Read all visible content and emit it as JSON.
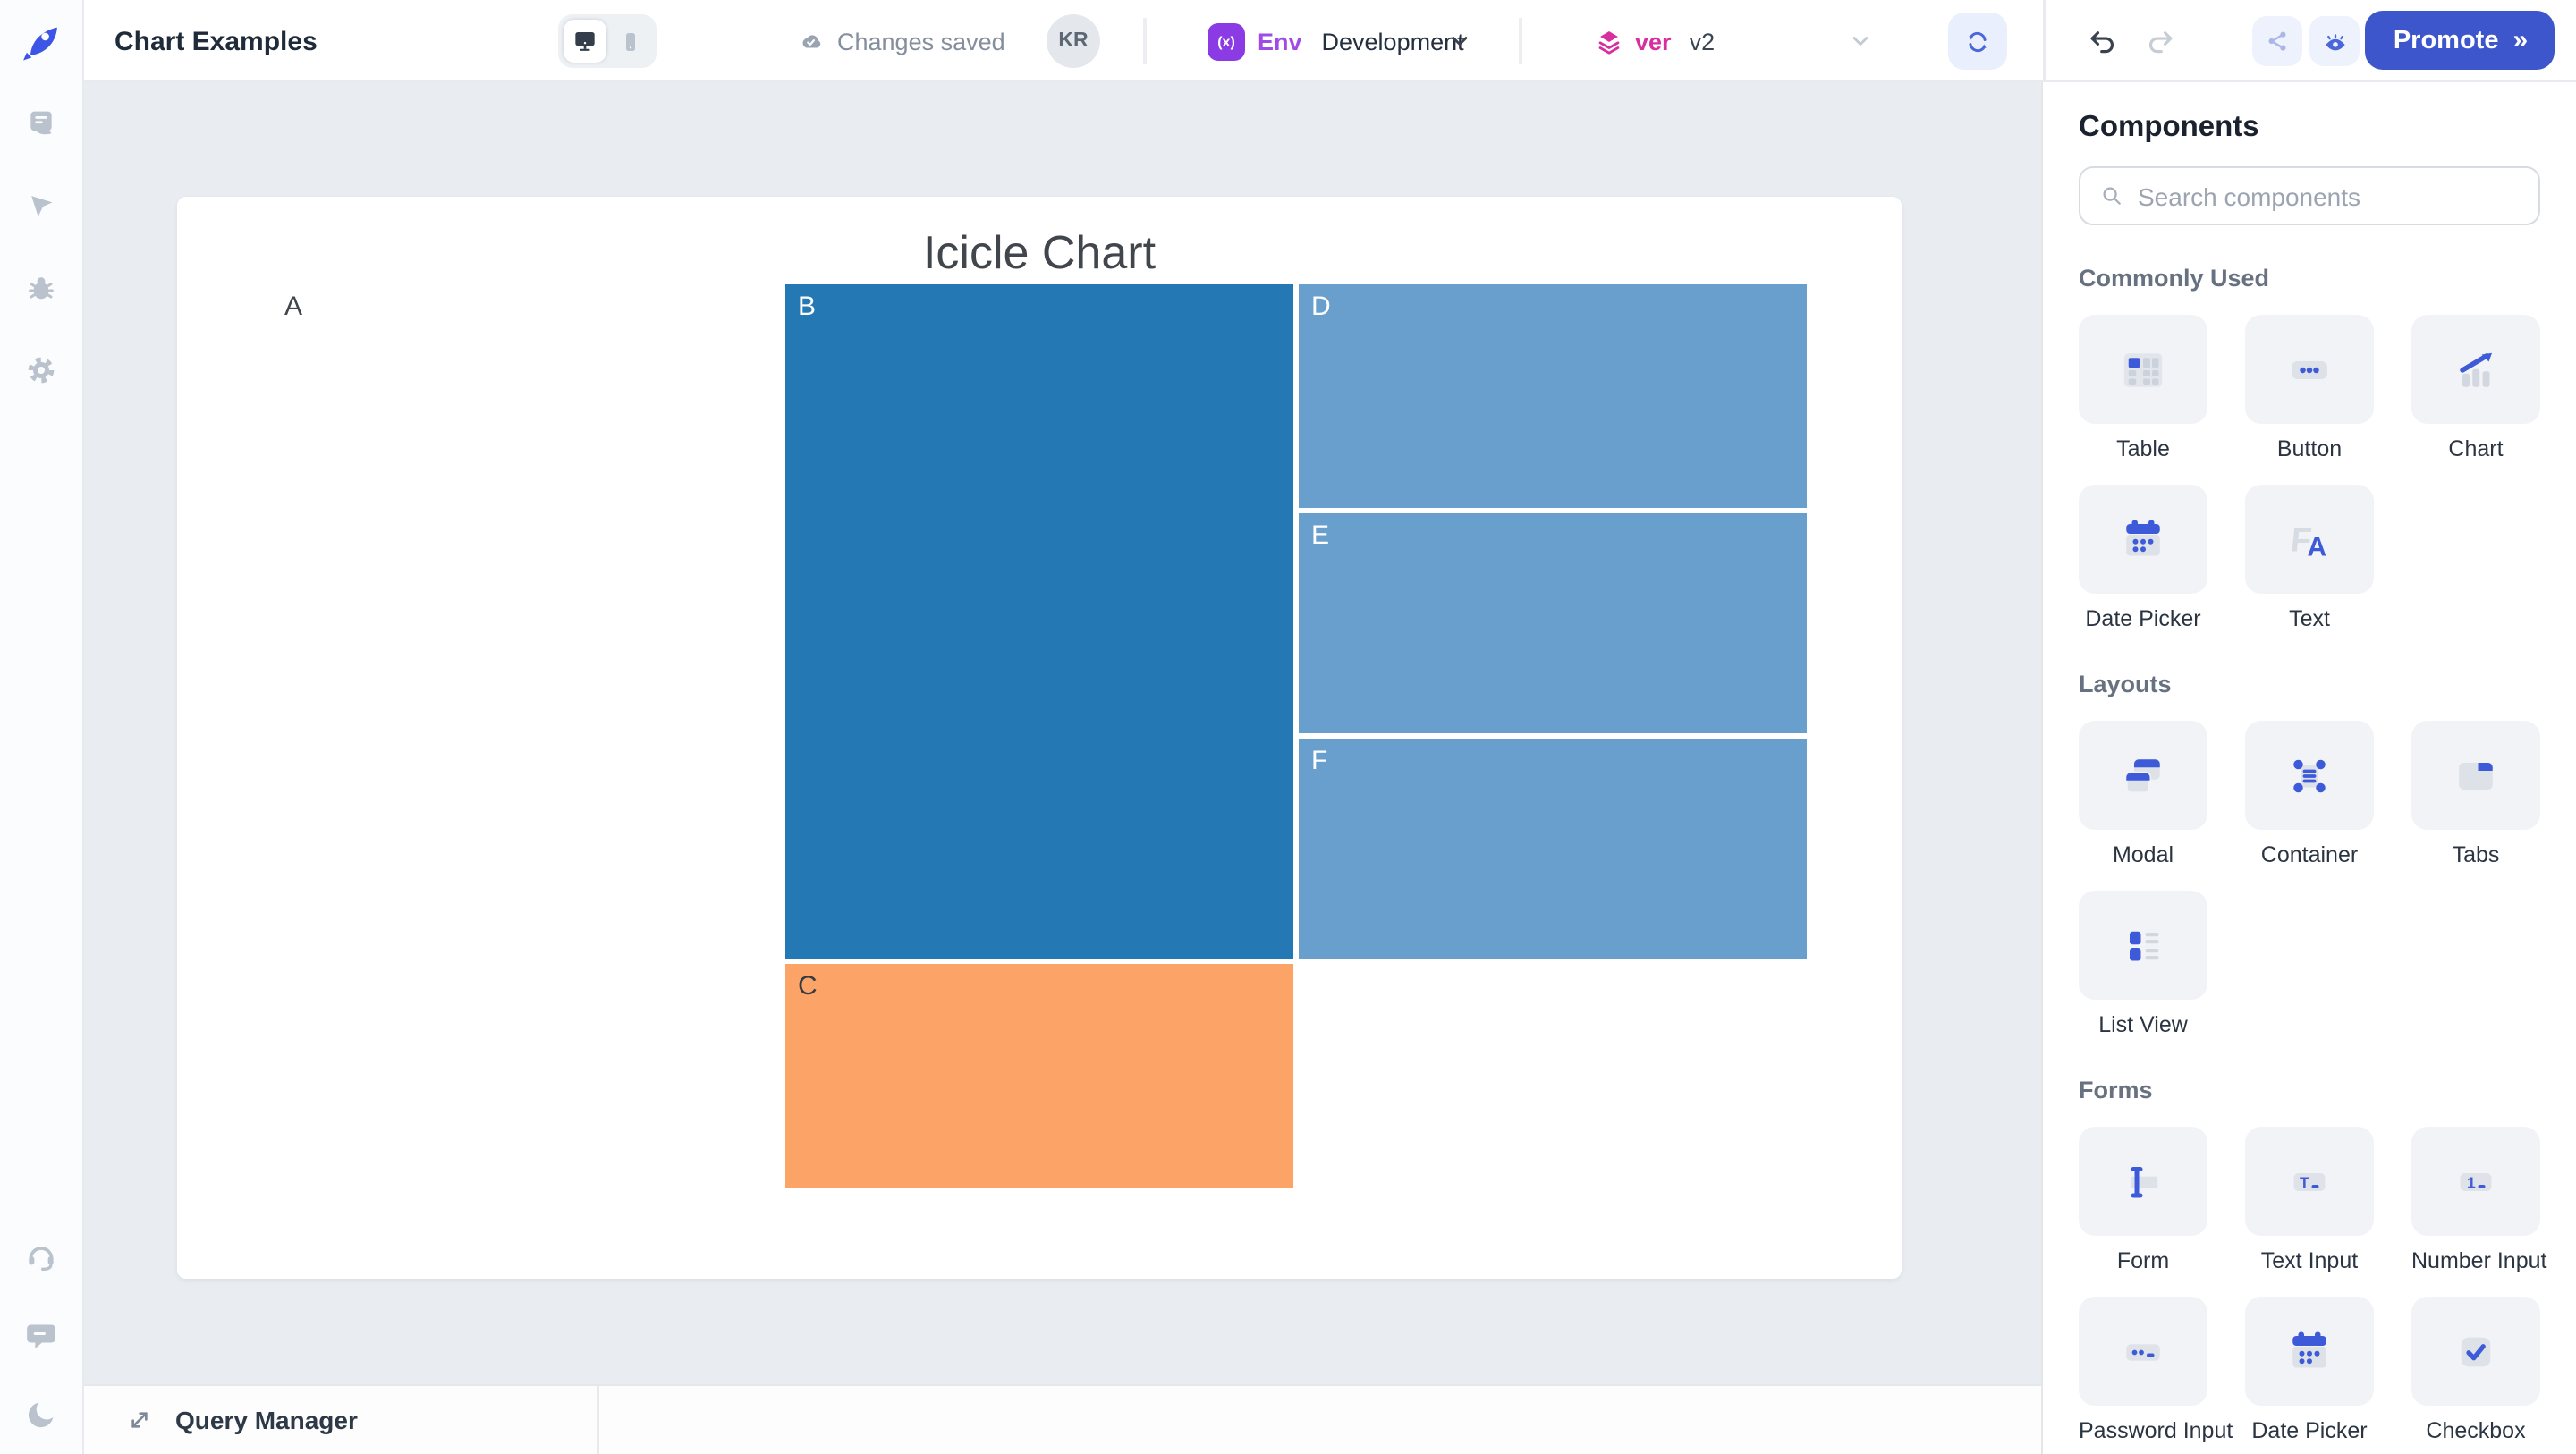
{
  "topbar": {
    "title": "Chart Examples",
    "status": "Changes saved",
    "avatar_initials": "KR",
    "env_badge": "(x)",
    "env_label": "Env",
    "env_value": "Development",
    "ver_label": "ver",
    "ver_value": "v2",
    "promote_label": "Promote",
    "promote_chevron": "»"
  },
  "sidebar": {
    "logo": "rocket-logo",
    "icons": [
      "pages-icon",
      "run-icon",
      "debug-icon",
      "settings-icon"
    ],
    "footer_icons": [
      "support-icon",
      "chat-icon",
      "dark-mode-icon"
    ]
  },
  "bottombar": {
    "query_manager": "Query Manager"
  },
  "components_panel": {
    "title": "Components",
    "search_placeholder": "Search components",
    "sections": [
      {
        "title": "Commonly Used",
        "items": [
          {
            "label": "Table",
            "icon": "table-icon"
          },
          {
            "label": "Button",
            "icon": "button-icon"
          },
          {
            "label": "Chart",
            "icon": "chart-icon"
          },
          {
            "label": "Date Picker",
            "icon": "date-picker-icon"
          },
          {
            "label": "Text",
            "icon": "text-icon"
          }
        ]
      },
      {
        "title": "Layouts",
        "items": [
          {
            "label": "Modal",
            "icon": "modal-icon"
          },
          {
            "label": "Container",
            "icon": "container-icon"
          },
          {
            "label": "Tabs",
            "icon": "tabs-icon"
          },
          {
            "label": "List View",
            "icon": "list-view-icon"
          }
        ]
      },
      {
        "title": "Forms",
        "items": [
          {
            "label": "Form",
            "icon": "form-icon"
          },
          {
            "label": "Text Input",
            "icon": "text-input-icon"
          },
          {
            "label": "Number Input",
            "icon": "number-input-icon"
          },
          {
            "label": "Password Input",
            "icon": "password-input-icon"
          },
          {
            "label": "Date Picker",
            "icon": "date-picker-icon"
          },
          {
            "label": "Checkbox",
            "icon": "checkbox-icon"
          }
        ]
      }
    ]
  },
  "chart_data": {
    "type": "icicle",
    "title": "Icicle Chart",
    "orientation": "horizontal-left-to-right",
    "columns": 3,
    "root": {
      "label": "A",
      "value": 4,
      "color": "#ffffff",
      "label_color": "#3f454c",
      "children": [
        {
          "label": "B",
          "value": 3,
          "color": "#2478b4",
          "label_color": "#ffffff",
          "children": [
            {
              "label": "D",
              "value": 1,
              "color": "#699fcd",
              "label_color": "#ffffff"
            },
            {
              "label": "E",
              "value": 1,
              "color": "#699fcd",
              "label_color": "#ffffff"
            },
            {
              "label": "F",
              "value": 1,
              "color": "#699fcd",
              "label_color": "#ffffff"
            }
          ]
        },
        {
          "label": "C",
          "value": 1,
          "color": "#fca467",
          "label_color": "#333a41"
        }
      ]
    }
  },
  "colors": {
    "accent_blue": "#3d56cb",
    "env_purple": "#8b3be3",
    "ver_pink": "#d72f9d",
    "canvas_bg": "#e9edf1",
    "cell_blue": "#2478b4",
    "cell_light_blue": "#699fcd",
    "cell_orange": "#fca467"
  }
}
